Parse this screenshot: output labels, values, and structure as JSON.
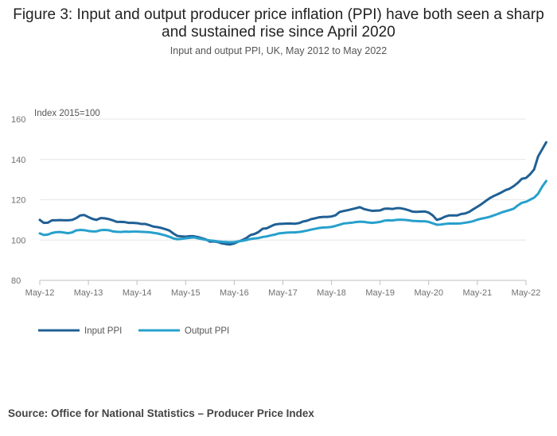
{
  "header": {
    "title": "Figure 3: Input and output producer price inflation (PPI) have both seen a sharp and sustained rise since April 2020",
    "subtitle": "Input and output PPI, UK, May 2012 to May 2022"
  },
  "footer": {
    "source": "Source: Office for National Statistics – Producer Price Index"
  },
  "colors": {
    "input": "#206095",
    "output": "#27a0cc",
    "grid": "#e6e6e6"
  },
  "chart_data": {
    "type": "line",
    "title": "Figure 3: Input and output producer price inflation (PPI) have both seen a sharp and sustained rise since April 2020",
    "subtitle": "Input and output PPI, UK, May 2012 to May 2022",
    "unit_label": "Index 2015=100",
    "xlabel": "",
    "ylabel": "Index 2015=100",
    "ylim": [
      80,
      160
    ],
    "yticks": [
      80,
      100,
      120,
      140,
      160
    ],
    "xticks": [
      "May-12",
      "May-13",
      "May-14",
      "May-15",
      "May-16",
      "May-17",
      "May-18",
      "May-19",
      "May-20",
      "May-21",
      "May-22"
    ],
    "x_start": "May-12",
    "x_end": "May-22",
    "grid": true,
    "legend_position": "bottom-left",
    "series": [
      {
        "name": "Input PPI",
        "color": "#206095",
        "values": [
          110.0,
          108.5,
          108.6,
          109.8,
          109.8,
          109.9,
          109.8,
          109.8,
          110.0,
          110.9,
          112.2,
          112.4,
          111.4,
          110.5,
          110.0,
          110.9,
          110.8,
          110.4,
          109.8,
          109.0,
          109.0,
          108.9,
          108.5,
          108.5,
          108.4,
          108.0,
          108.0,
          107.4,
          106.7,
          106.4,
          106.0,
          105.4,
          104.7,
          103.2,
          102.0,
          101.8,
          101.7,
          101.9,
          101.9,
          101.5,
          100.9,
          100.3,
          99.2,
          99.3,
          99.0,
          98.3,
          98.0,
          97.8,
          98.3,
          99.2,
          100.0,
          101.0,
          102.5,
          103.0,
          104.0,
          105.6,
          105.8,
          106.8,
          107.7,
          108.0,
          108.1,
          108.2,
          108.2,
          108.1,
          108.4,
          109.2,
          109.6,
          110.4,
          110.8,
          111.3,
          111.5,
          111.5,
          111.7,
          112.3,
          113.9,
          114.4,
          114.8,
          115.3,
          115.8,
          116.3,
          115.4,
          114.9,
          114.5,
          114.6,
          114.7,
          115.5,
          115.6,
          115.4,
          115.8,
          115.8,
          115.4,
          114.8,
          114.1,
          114.0,
          114.1,
          114.2,
          113.6,
          112.2,
          110.0,
          110.6,
          111.6,
          112.2,
          112.2,
          112.2,
          112.9,
          113.2,
          114.0,
          115.3,
          116.5,
          117.8,
          119.3,
          120.7,
          121.8,
          122.7,
          123.7,
          124.8,
          125.5,
          126.8,
          128.4,
          130.4,
          130.8,
          132.6,
          135.0,
          141.5,
          145.0,
          148.5
        ]
      },
      {
        "name": "Output PPI",
        "color": "#27a0cc",
        "values": [
          103.3,
          102.5,
          102.7,
          103.5,
          103.9,
          104.0,
          103.7,
          103.4,
          103.8,
          104.8,
          105.0,
          104.9,
          104.5,
          104.3,
          104.3,
          104.9,
          105.0,
          104.9,
          104.3,
          104.1,
          104.0,
          104.2,
          104.1,
          104.2,
          104.2,
          104.1,
          104.0,
          103.9,
          103.6,
          103.3,
          102.8,
          102.3,
          101.6,
          100.8,
          100.4,
          100.6,
          100.9,
          101.1,
          101.3,
          100.9,
          100.5,
          100.1,
          99.8,
          99.6,
          99.3,
          99.1,
          99.0,
          98.9,
          99.0,
          99.3,
          99.6,
          100.0,
          100.5,
          100.8,
          101.0,
          101.5,
          101.8,
          102.3,
          102.7,
          103.3,
          103.5,
          103.7,
          103.8,
          103.8,
          104.0,
          104.3,
          104.7,
          105.2,
          105.6,
          106.0,
          106.2,
          106.3,
          106.5,
          107.0,
          107.6,
          108.2,
          108.4,
          108.6,
          108.9,
          109.1,
          109.0,
          108.7,
          108.5,
          108.7,
          109.0,
          109.6,
          109.8,
          109.7,
          110.0,
          110.1,
          110.0,
          109.8,
          109.5,
          109.4,
          109.3,
          109.3,
          109.0,
          108.3,
          107.6,
          107.7,
          108.0,
          108.2,
          108.2,
          108.2,
          108.3,
          108.6,
          108.9,
          109.4,
          110.1,
          110.6,
          111.0,
          111.5,
          112.2,
          112.9,
          113.7,
          114.3,
          114.9,
          115.6,
          117.2,
          118.5,
          119.0,
          120.0,
          121.0,
          123.0,
          126.5,
          129.3
        ]
      }
    ]
  }
}
